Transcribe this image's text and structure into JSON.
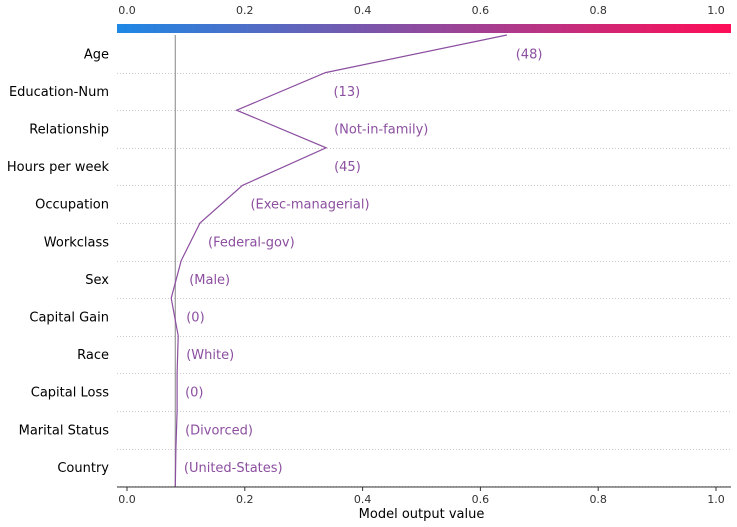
{
  "chart_data": {
    "type": "line",
    "subtype": "decision-plot",
    "xlabel": "Model output value",
    "xlim": [
      -0.01,
      1.02
    ],
    "ticks": [
      0.0,
      0.2,
      0.4,
      0.6,
      0.8,
      1.0
    ],
    "tick_labels": [
      "0.0",
      "0.2",
      "0.4",
      "0.6",
      "0.8",
      "1.0"
    ],
    "base_value": 0.082,
    "colorbar": {
      "from": "#1e88e5",
      "to": "#ff0d57",
      "position": "top"
    },
    "line_color": "#8c4fa0",
    "label_color": "#8c4fa0",
    "grid": "dotted horizontal",
    "features": [
      {
        "name": "Age",
        "value_label": "(48)",
        "output": 0.645
      },
      {
        "name": "Education-Num",
        "value_label": "(13)",
        "output": 0.337
      },
      {
        "name": "Relationship",
        "value_label": "(Not-in-family)",
        "output": 0.186
      },
      {
        "name": "Hours per week",
        "value_label": "(45)",
        "output": 0.338
      },
      {
        "name": "Occupation",
        "value_label": "(Exec-managerial)",
        "output": 0.196
      },
      {
        "name": "Workclass",
        "value_label": "(Federal-gov)",
        "output": 0.124
      },
      {
        "name": "Sex",
        "value_label": "(Male)",
        "output": 0.092
      },
      {
        "name": "Capital Gain",
        "value_label": "(0)",
        "output": 0.075
      },
      {
        "name": "Race",
        "value_label": "(White)",
        "output": 0.087
      },
      {
        "name": "Capital Loss",
        "value_label": "(0)",
        "output": 0.085
      },
      {
        "name": "Marital Status",
        "value_label": "(Divorced)",
        "output": 0.085
      },
      {
        "name": "Country",
        "value_label": "(United-States)",
        "output": 0.083
      }
    ],
    "start_output": 0.082
  }
}
